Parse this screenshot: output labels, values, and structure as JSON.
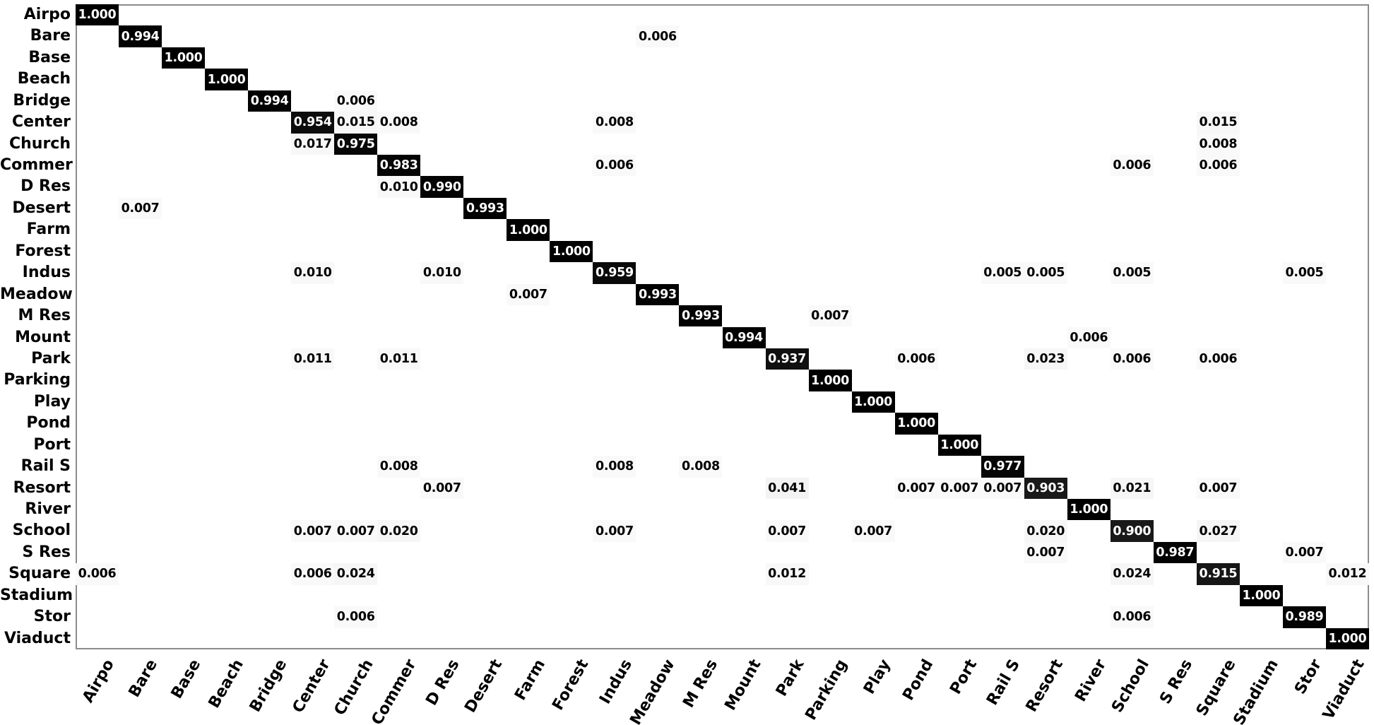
{
  "chart_data": {
    "type": "heatmap",
    "subtype": "confusion-matrix",
    "title": "",
    "xlabel": "",
    "ylabel": "",
    "grid": false,
    "legend": "none",
    "value_range": [
      0,
      1
    ],
    "colormap": "greys",
    "colors": {
      "background": "#ffffff",
      "spine": "#8c8c8c",
      "diagonal_cell": "#000000",
      "diagonal_text": "#ffffff",
      "offdiagonal_text": "#000000"
    },
    "classes": [
      "Airpo",
      "Bare",
      "Base",
      "Beach",
      "Bridge",
      "Center",
      "Church",
      "Commer",
      "D Res",
      "Desert",
      "Farm",
      "Forest",
      "Indus",
      "Meadow",
      "M Res",
      "Mount",
      "Park",
      "Parking",
      "Play",
      "Pond",
      "Port",
      "Rail S",
      "Resort",
      "River",
      "School",
      "S Res",
      "Square",
      "Stadium",
      "Stor",
      "Viaduct"
    ],
    "cells": [
      {
        "r": 0,
        "c": 0,
        "v": "1.000"
      },
      {
        "r": 1,
        "c": 1,
        "v": "0.994"
      },
      {
        "r": 1,
        "c": 13,
        "v": "0.006"
      },
      {
        "r": 2,
        "c": 2,
        "v": "1.000"
      },
      {
        "r": 3,
        "c": 3,
        "v": "1.000"
      },
      {
        "r": 4,
        "c": 4,
        "v": "0.994"
      },
      {
        "r": 4,
        "c": 6,
        "v": "0.006"
      },
      {
        "r": 5,
        "c": 5,
        "v": "0.954"
      },
      {
        "r": 5,
        "c": 6,
        "v": "0.015"
      },
      {
        "r": 5,
        "c": 7,
        "v": "0.008"
      },
      {
        "r": 5,
        "c": 12,
        "v": "0.008"
      },
      {
        "r": 5,
        "c": 26,
        "v": "0.015"
      },
      {
        "r": 6,
        "c": 5,
        "v": "0.017"
      },
      {
        "r": 6,
        "c": 6,
        "v": "0.975"
      },
      {
        "r": 6,
        "c": 26,
        "v": "0.008"
      },
      {
        "r": 7,
        "c": 7,
        "v": "0.983"
      },
      {
        "r": 7,
        "c": 12,
        "v": "0.006"
      },
      {
        "r": 7,
        "c": 24,
        "v": "0.006"
      },
      {
        "r": 7,
        "c": 26,
        "v": "0.006"
      },
      {
        "r": 8,
        "c": 7,
        "v": "0.010"
      },
      {
        "r": 8,
        "c": 8,
        "v": "0.990"
      },
      {
        "r": 9,
        "c": 1,
        "v": "0.007"
      },
      {
        "r": 9,
        "c": 9,
        "v": "0.993"
      },
      {
        "r": 10,
        "c": 10,
        "v": "1.000"
      },
      {
        "r": 11,
        "c": 11,
        "v": "1.000"
      },
      {
        "r": 12,
        "c": 5,
        "v": "0.010"
      },
      {
        "r": 12,
        "c": 8,
        "v": "0.010"
      },
      {
        "r": 12,
        "c": 12,
        "v": "0.959"
      },
      {
        "r": 12,
        "c": 21,
        "v": "0.005"
      },
      {
        "r": 12,
        "c": 22,
        "v": "0.005"
      },
      {
        "r": 12,
        "c": 24,
        "v": "0.005"
      },
      {
        "r": 12,
        "c": 28,
        "v": "0.005"
      },
      {
        "r": 13,
        "c": 10,
        "v": "0.007"
      },
      {
        "r": 13,
        "c": 13,
        "v": "0.993"
      },
      {
        "r": 14,
        "c": 14,
        "v": "0.993"
      },
      {
        "r": 14,
        "c": 17,
        "v": "0.007"
      },
      {
        "r": 15,
        "c": 15,
        "v": "0.994"
      },
      {
        "r": 15,
        "c": 23,
        "v": "0.006"
      },
      {
        "r": 16,
        "c": 5,
        "v": "0.011"
      },
      {
        "r": 16,
        "c": 7,
        "v": "0.011"
      },
      {
        "r": 16,
        "c": 16,
        "v": "0.937"
      },
      {
        "r": 16,
        "c": 19,
        "v": "0.006"
      },
      {
        "r": 16,
        "c": 22,
        "v": "0.023"
      },
      {
        "r": 16,
        "c": 24,
        "v": "0.006"
      },
      {
        "r": 16,
        "c": 26,
        "v": "0.006"
      },
      {
        "r": 17,
        "c": 17,
        "v": "1.000"
      },
      {
        "r": 18,
        "c": 18,
        "v": "1.000"
      },
      {
        "r": 19,
        "c": 19,
        "v": "1.000"
      },
      {
        "r": 20,
        "c": 20,
        "v": "1.000"
      },
      {
        "r": 21,
        "c": 7,
        "v": "0.008"
      },
      {
        "r": 21,
        "c": 12,
        "v": "0.008"
      },
      {
        "r": 21,
        "c": 14,
        "v": "0.008"
      },
      {
        "r": 21,
        "c": 21,
        "v": "0.977"
      },
      {
        "r": 22,
        "c": 8,
        "v": "0.007"
      },
      {
        "r": 22,
        "c": 16,
        "v": "0.041"
      },
      {
        "r": 22,
        "c": 19,
        "v": "0.007"
      },
      {
        "r": 22,
        "c": 20,
        "v": "0.007"
      },
      {
        "r": 22,
        "c": 21,
        "v": "0.007"
      },
      {
        "r": 22,
        "c": 22,
        "v": "0.903"
      },
      {
        "r": 22,
        "c": 24,
        "v": "0.021"
      },
      {
        "r": 22,
        "c": 26,
        "v": "0.007"
      },
      {
        "r": 23,
        "c": 23,
        "v": "1.000"
      },
      {
        "r": 24,
        "c": 5,
        "v": "0.007"
      },
      {
        "r": 24,
        "c": 6,
        "v": "0.007"
      },
      {
        "r": 24,
        "c": 7,
        "v": "0.020"
      },
      {
        "r": 24,
        "c": 12,
        "v": "0.007"
      },
      {
        "r": 24,
        "c": 16,
        "v": "0.007"
      },
      {
        "r": 24,
        "c": 18,
        "v": "0.007"
      },
      {
        "r": 24,
        "c": 22,
        "v": "0.020"
      },
      {
        "r": 24,
        "c": 24,
        "v": "0.900"
      },
      {
        "r": 24,
        "c": 26,
        "v": "0.027"
      },
      {
        "r": 25,
        "c": 22,
        "v": "0.007"
      },
      {
        "r": 25,
        "c": 25,
        "v": "0.987"
      },
      {
        "r": 25,
        "c": 28,
        "v": "0.007"
      },
      {
        "r": 26,
        "c": 0,
        "v": "0.006"
      },
      {
        "r": 26,
        "c": 5,
        "v": "0.006"
      },
      {
        "r": 26,
        "c": 6,
        "v": "0.024"
      },
      {
        "r": 26,
        "c": 16,
        "v": "0.012"
      },
      {
        "r": 26,
        "c": 24,
        "v": "0.024"
      },
      {
        "r": 26,
        "c": 26,
        "v": "0.915"
      },
      {
        "r": 26,
        "c": 29,
        "v": "0.012"
      },
      {
        "r": 27,
        "c": 27,
        "v": "1.000"
      },
      {
        "r": 28,
        "c": 6,
        "v": "0.006"
      },
      {
        "r": 28,
        "c": 24,
        "v": "0.006"
      },
      {
        "r": 28,
        "c": 28,
        "v": "0.989"
      },
      {
        "r": 29,
        "c": 29,
        "v": "1.000"
      }
    ]
  }
}
